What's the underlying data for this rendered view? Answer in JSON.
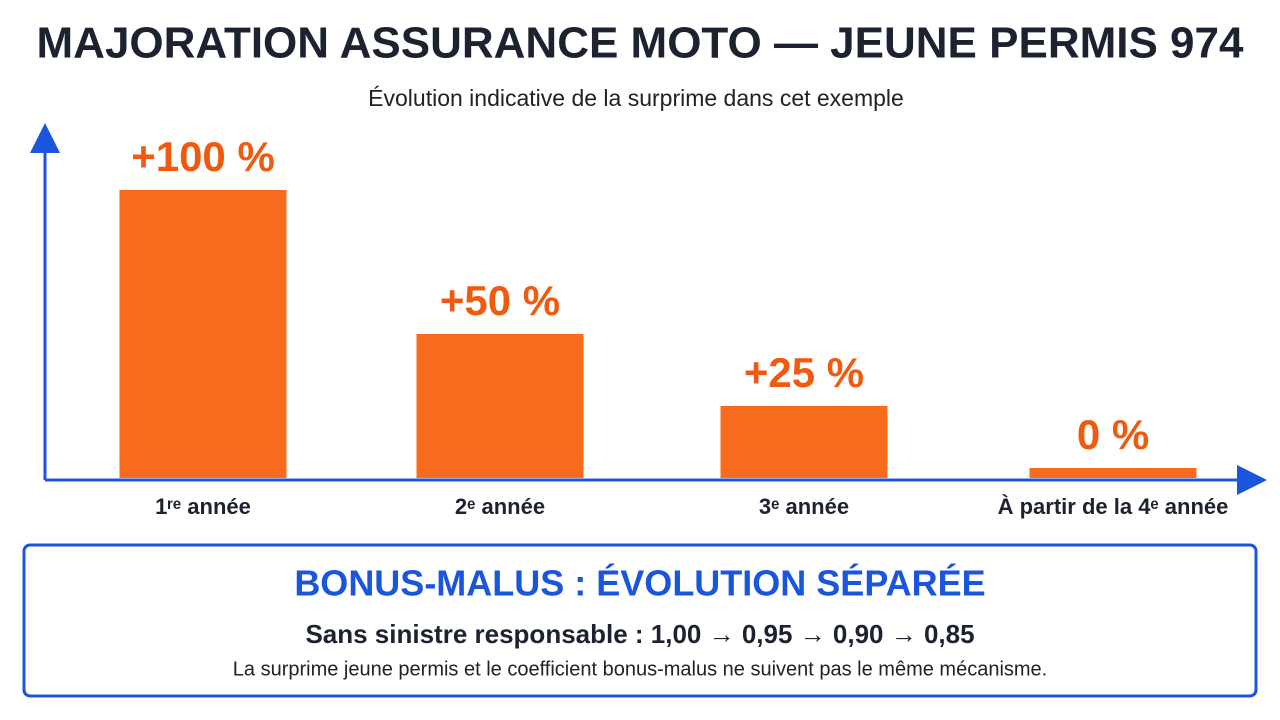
{
  "chart_data": {
    "type": "bar",
    "title": "MAJORATION ASSURANCE MOTO — JEUNE PERMIS 974",
    "subtitle": "Évolution indicative de la surprime dans cet exemple",
    "categories": [
      "1ʳᵉ année",
      "2ᵉ année",
      "3ᵉ année",
      "À partir de la 4ᵉ année"
    ],
    "values": [
      100,
      50,
      25,
      0
    ],
    "value_labels": [
      "+100 %",
      "+50 %",
      "+25 %",
      "0 %"
    ],
    "color": "#f76b1c",
    "label_color": "#f05a10",
    "axis_color": "#1a56db"
  },
  "info_box": {
    "title": "BONUS-MALUS : ÉVOLUTION SÉPARÉE",
    "text": "Sans sinistre responsable : 1,00 → 0,95 → 0,90 → 0,85",
    "note": "La surprime jeune permis et le coefficient bonus-malus ne suivent pas le même mécanisme."
  }
}
